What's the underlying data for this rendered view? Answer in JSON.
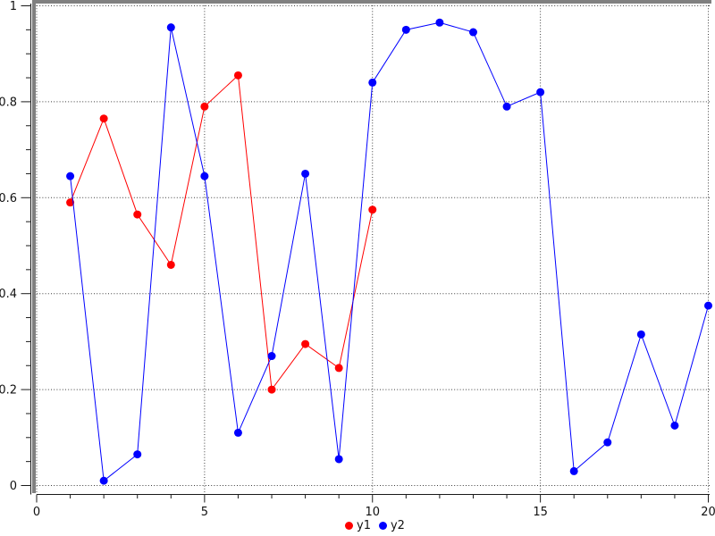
{
  "figure": {
    "background": "#ffffff",
    "frame_color": "#808080",
    "axis_color": "#1a1a1a",
    "grid_color": "#3c3c3c",
    "label_color": "#111111"
  },
  "chart_data": {
    "type": "line",
    "title": "",
    "xlabel": "",
    "ylabel": "",
    "xlim": [
      0,
      20
    ],
    "ylim": [
      0,
      1
    ],
    "x_major_ticks": [
      0,
      5,
      10,
      15,
      20
    ],
    "x_tick_labels": [
      "0",
      "5",
      "10",
      "15",
      "20"
    ],
    "x_minor_step": 1,
    "y_major_ticks": [
      0,
      0.2,
      0.4,
      0.6,
      0.8,
      1
    ],
    "y_tick_labels": [
      "0",
      "0.2",
      "0.4",
      "0.6",
      "0.8",
      "1"
    ],
    "y_minor_step": 0.05,
    "grid": true,
    "grid_style": "dotted",
    "marker": "filled-circle",
    "legend_position": "bottom-center",
    "series": [
      {
        "name": "y1",
        "color": "#ff0000",
        "x": [
          1,
          2,
          3,
          4,
          5,
          6,
          7,
          8,
          9,
          10
        ],
        "values": [
          0.59,
          0.765,
          0.565,
          0.46,
          0.79,
          0.855,
          0.2,
          0.295,
          0.245,
          0.575
        ]
      },
      {
        "name": "y2",
        "color": "#0000ff",
        "x": [
          1,
          2,
          3,
          4,
          5,
          6,
          7,
          8,
          9,
          10,
          11,
          12,
          13,
          14,
          15,
          16,
          17,
          18,
          19,
          20
        ],
        "values": [
          0.645,
          0.01,
          0.065,
          0.955,
          0.645,
          0.11,
          0.27,
          0.65,
          0.055,
          0.84,
          0.95,
          0.965,
          0.945,
          0.79,
          0.82,
          0.03,
          0.09,
          0.315,
          0.125,
          0.375
        ]
      }
    ]
  },
  "legend": {
    "items": [
      {
        "label": "y1",
        "color": "#ff0000"
      },
      {
        "label": "y2",
        "color": "#0000ff"
      }
    ]
  }
}
